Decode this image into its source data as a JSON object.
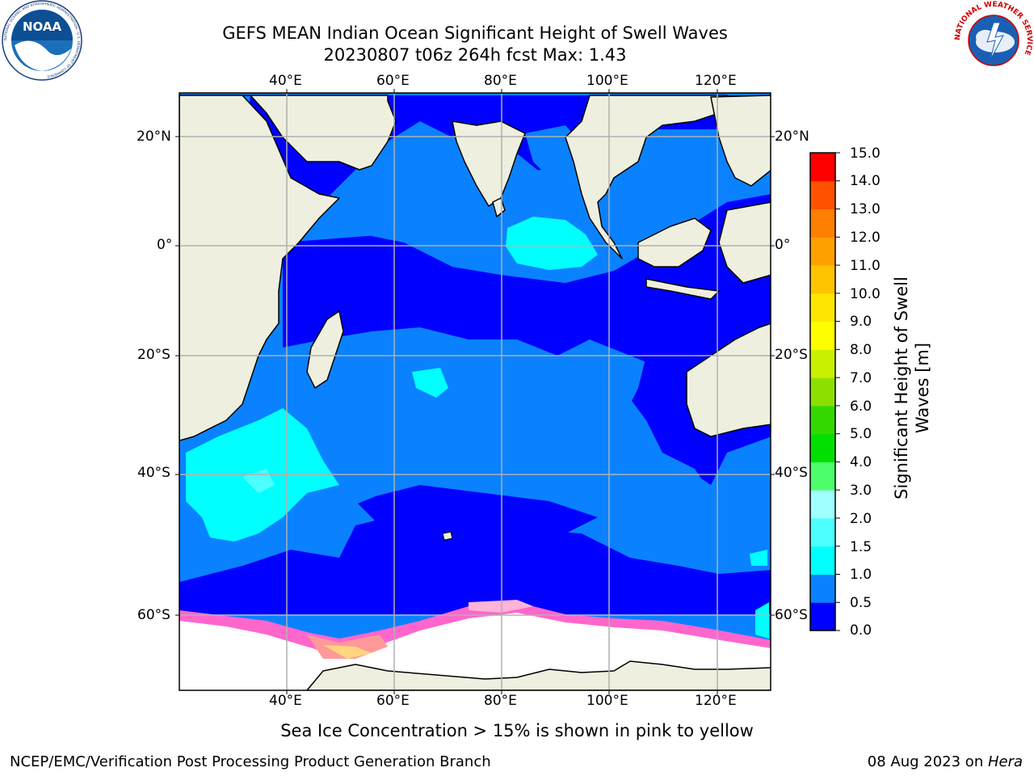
{
  "header": {
    "title_line1": "GEFS MEAN Indian Ocean Significant Height of Swell Waves",
    "title_line2": "20230807 t06z 264h fcst   Max: 1.43"
  },
  "logos": {
    "noaa": {
      "text": "NOAA",
      "ring_text": "NATIONAL OCEANIC AND ATMOSPHERIC ADMINISTRATION · U.S. DEPARTMENT OF COMMERCE"
    },
    "nws": {
      "ring_text": "NATIONAL WEATHER SERVICE"
    }
  },
  "map": {
    "lon_labels": [
      "40°E",
      "60°E",
      "80°E",
      "100°E",
      "120°E"
    ],
    "lat_labels": [
      "20°N",
      "0°",
      "20°S",
      "40°S",
      "60°S"
    ],
    "colors": {
      "land": "#efefdf",
      "ice_free_white": "#ffffff",
      "grid": "#b0b0b0",
      "coast": "#000000"
    }
  },
  "colorbar": {
    "label_line1": "Significant Height of Swell",
    "label_line2": "Waves [m]",
    "ticks": [
      "0.0",
      "0.5",
      "1.0",
      "1.5",
      "2.0",
      "3.0",
      "4.0",
      "5.0",
      "6.0",
      "7.0",
      "8.0",
      "9.0",
      "10.0",
      "11.0",
      "12.0",
      "13.0",
      "14.0",
      "15.0"
    ],
    "colors": [
      "#0000ff",
      "#0a82ff",
      "#00ffff",
      "#4dffff",
      "#a0ffff",
      "#4dff6d",
      "#00e000",
      "#34d800",
      "#8ce000",
      "#c8f000",
      "#ffff00",
      "#ffe600",
      "#ffc300",
      "#ffa100",
      "#ff7f00",
      "#ff5200",
      "#ff0000"
    ]
  },
  "caption": "Sea Ice Concentration > 15% is shown in pink to yellow",
  "footer": {
    "left": "NCEP/EMC/Verification Post Processing Product Generation Branch",
    "right_date": "08 Aug 2023 on ",
    "right_host": "Hera"
  }
}
